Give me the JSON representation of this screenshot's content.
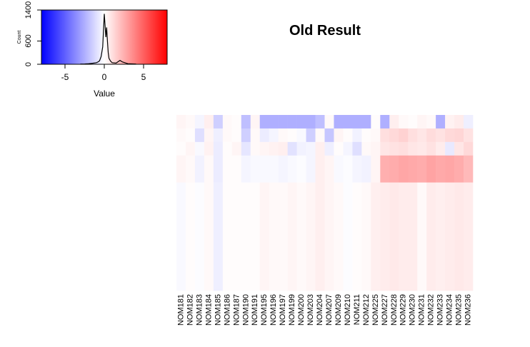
{
  "title": "Old Result",
  "color_key": {
    "xlabel": "Value",
    "ylabel": "Count",
    "x_ticks": [
      -5,
      0,
      5
    ],
    "y_ticks": [
      0,
      600,
      1400
    ],
    "xlim": [
      -8,
      8
    ],
    "ylim": [
      0,
      1400
    ],
    "low_color": "#0000ff",
    "mid_color": "#ffffff",
    "high_color": "#ff0000",
    "histogram": {
      "x": [
        -3.0,
        -2.5,
        -2.0,
        -1.5,
        -1.0,
        -0.8,
        -0.6,
        -0.4,
        -0.2,
        0.0,
        0.1,
        0.2,
        0.3,
        0.4,
        0.5,
        0.6,
        0.8,
        1.0,
        1.5,
        2.0,
        2.3,
        2.6,
        3.0,
        4.0
      ],
      "count": [
        5,
        8,
        15,
        25,
        40,
        60,
        90,
        200,
        450,
        1300,
        1000,
        700,
        950,
        600,
        300,
        150,
        80,
        40,
        30,
        100,
        60,
        40,
        15,
        5
      ]
    }
  },
  "chart_data": {
    "type": "heatmap",
    "title": "Old Result",
    "columns": [
      "NOM181",
      "NOM182",
      "NOM183",
      "NOM184",
      "NOM185",
      "NOM186",
      "NOM187",
      "NOM190",
      "NOM191",
      "NOM195",
      "NOM196",
      "NOM197",
      "NOM199",
      "NOM200",
      "NOM203",
      "NOM204",
      "NOM207",
      "NOM209",
      "NOM210",
      "NOM211",
      "NOM212",
      "NOM225",
      "NOM227",
      "NOM228",
      "NOM229",
      "NOM230",
      "NOM231",
      "NOM232",
      "NOM233",
      "NOM234",
      "NOM235",
      "NOM236"
    ],
    "row_bands": [
      {
        "rows": 3,
        "values": [
          0.3,
          0.2,
          -0.3,
          0.5,
          -1.5,
          0.2,
          0.1,
          -2.0,
          0.3,
          -2.5,
          -2.5,
          -2.5,
          -2.5,
          -2.5,
          -2.5,
          -2.0,
          0.2,
          -2.5,
          -2.5,
          -2.5,
          -2.5,
          0.1,
          -2.5,
          0.5,
          0.2,
          0.1,
          0.3,
          0.2,
          -2.5,
          0.4,
          0.6,
          -0.5
        ]
      },
      {
        "rows": 3,
        "values": [
          0.2,
          0.1,
          -1.0,
          0.3,
          -0.5,
          0.2,
          0.1,
          -1.5,
          0.2,
          -0.6,
          -0.3,
          0.2,
          0.1,
          -0.2,
          -1.5,
          0.2,
          -1.8,
          0.3,
          0.1,
          -0.4,
          0.1,
          0.2,
          1.0,
          1.2,
          1.4,
          1.0,
          0.8,
          1.1,
          0.9,
          1.2,
          1.3,
          0.9
        ]
      },
      {
        "rows": 3,
        "values": [
          0.1,
          0.3,
          -0.2,
          0.4,
          -0.6,
          0.1,
          0.3,
          -0.8,
          0.2,
          0.3,
          0.4,
          0.5,
          -0.9,
          -0.4,
          -0.3,
          0.5,
          -0.5,
          0.1,
          -0.3,
          -1.0,
          0.2,
          0.3,
          0.8,
          0.9,
          1.0,
          0.8,
          0.7,
          0.9,
          0.6,
          -0.7,
          0.8,
          1.2
        ]
      },
      {
        "rows": 6,
        "values": [
          0.3,
          0.2,
          -0.4,
          0.2,
          -0.6,
          0.1,
          0.1,
          -0.3,
          -0.2,
          -0.2,
          -0.2,
          -0.3,
          -0.2,
          -0.1,
          -0.3,
          0.5,
          0.3,
          -0.2,
          -0.1,
          -0.3,
          -0.4,
          0.3,
          2.5,
          2.6,
          2.8,
          2.7,
          2.6,
          2.9,
          2.7,
          2.8,
          2.6,
          2.2
        ]
      },
      {
        "rows": 24,
        "values": [
          -0.2,
          0.1,
          -0.1,
          0.2,
          -0.5,
          0.1,
          0.1,
          0.1,
          0.1,
          0.3,
          0.2,
          0.2,
          0.3,
          0.2,
          0.3,
          0.5,
          0.3,
          0.2,
          -0.1,
          0.1,
          0.2,
          0.5,
          0.6,
          0.7,
          0.6,
          0.6,
          0.2,
          0.6,
          0.5,
          0.6,
          0.7,
          0.6
        ]
      }
    ],
    "color_range": [
      -8,
      8
    ]
  }
}
